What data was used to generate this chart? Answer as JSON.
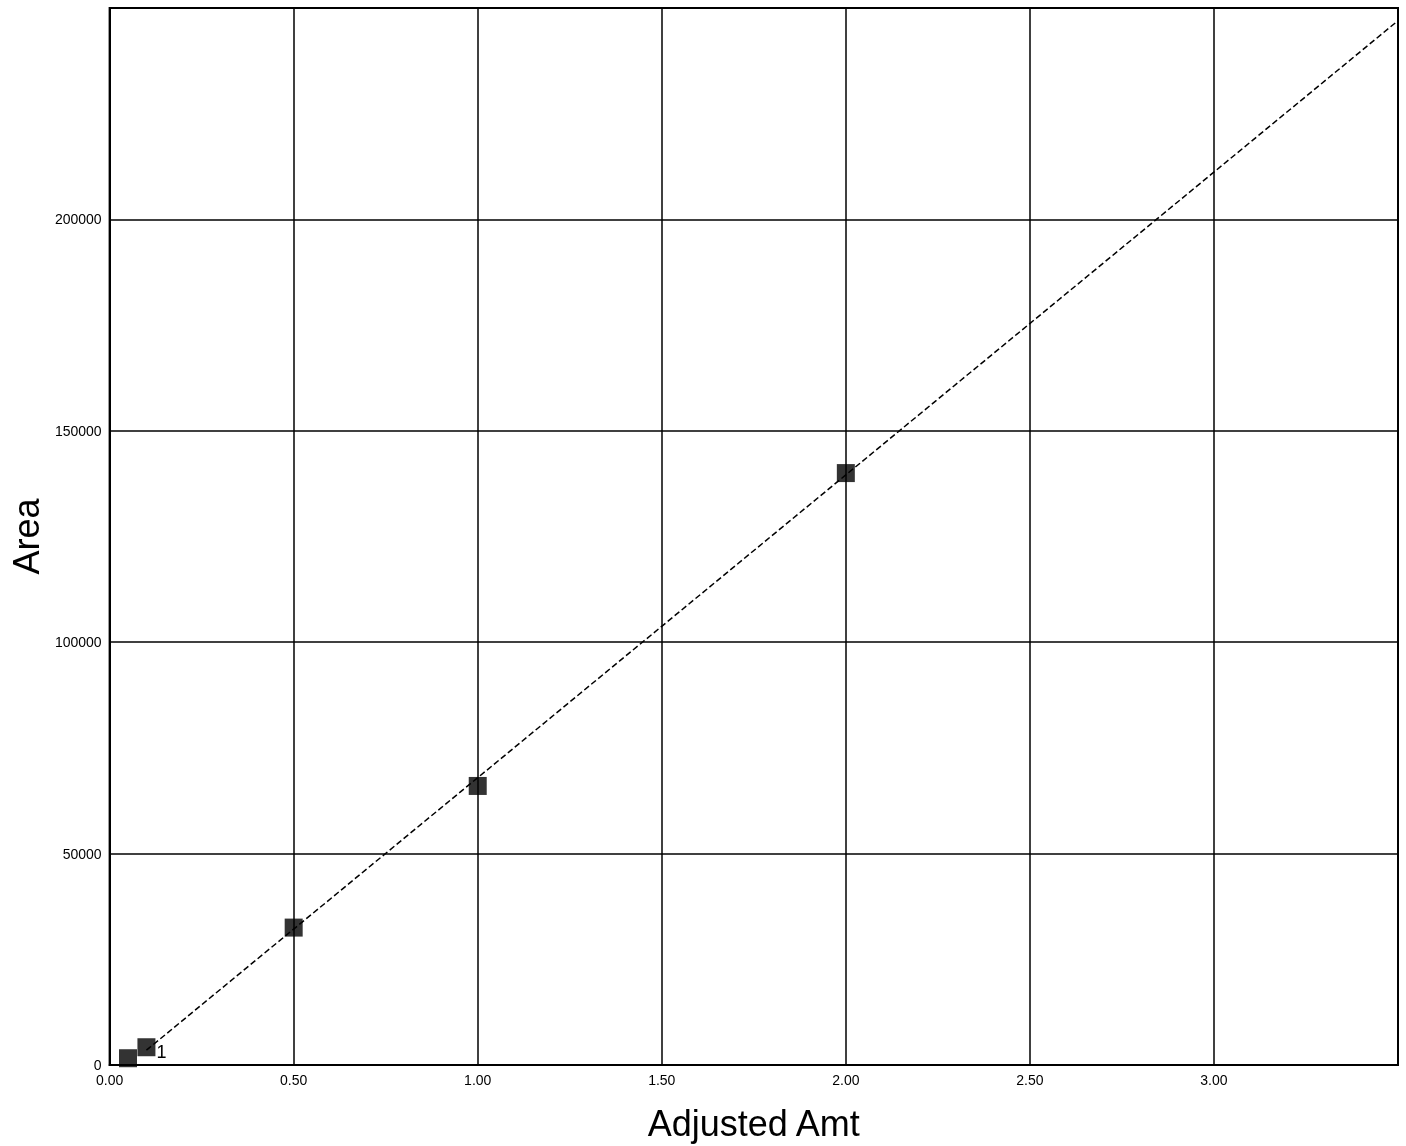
{
  "chart_data": {
    "type": "scatter",
    "xlabel": "Adjusted Amt",
    "ylabel": "Area",
    "xlim": [
      0,
      3.5
    ],
    "ylim": [
      0,
      250000
    ],
    "xticks": [
      {
        "value": 0,
        "label": "0.00"
      },
      {
        "value": 0.5,
        "label": "0.50"
      },
      {
        "value": 1,
        "label": "1.00"
      },
      {
        "value": 1.5,
        "label": "1.50"
      },
      {
        "value": 2,
        "label": "2.00"
      },
      {
        "value": 2.5,
        "label": "2.50"
      },
      {
        "value": 3,
        "label": "3.00"
      }
    ],
    "yticks": [
      0,
      50000,
      100000,
      150000,
      200000
    ],
    "grid": true,
    "series": [
      {
        "type": "line",
        "color": "#000000",
        "line_style": "dashed",
        "marker": "none",
        "x": [
          0.1,
          3.5
        ],
        "values": [
          3500,
          247000
        ]
      },
      {
        "color": "#000000",
        "marker": "square",
        "x": [
          0.05,
          0.1,
          0.5,
          1,
          2
        ],
        "values": [
          1600,
          4200,
          32500,
          66000,
          140000
        ]
      }
    ],
    "annotations": [
      {
        "text": "1",
        "x": 0.1,
        "y": 4200
      }
    ]
  }
}
